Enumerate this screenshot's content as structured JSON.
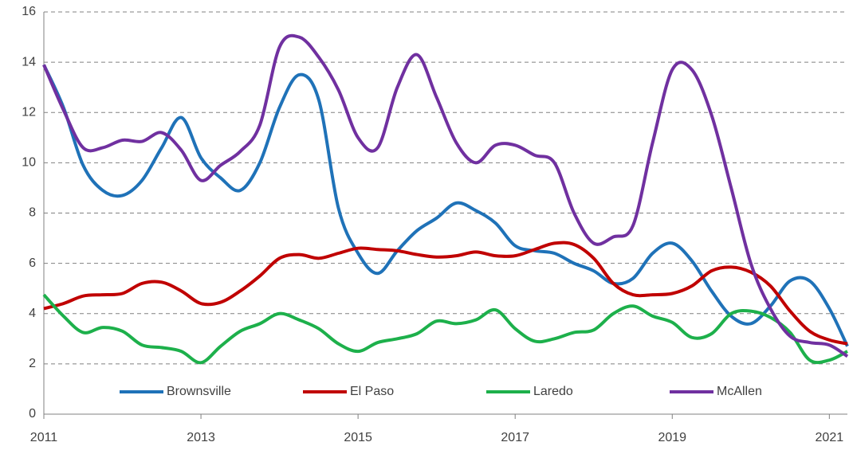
{
  "chart_data": {
    "type": "line",
    "x": [
      2011,
      2011.25,
      2011.5,
      2011.75,
      2012,
      2012.25,
      2012.5,
      2012.75,
      2013,
      2013.25,
      2013.5,
      2013.75,
      2014,
      2014.25,
      2014.5,
      2014.75,
      2015,
      2015.25,
      2015.5,
      2015.75,
      2016,
      2016.25,
      2016.5,
      2016.75,
      2017,
      2017.25,
      2017.5,
      2017.75,
      2018,
      2018.25,
      2018.5,
      2018.75,
      2019,
      2019.25,
      2019.5,
      2019.75,
      2020,
      2020.25,
      2020.5,
      2020.75,
      2021,
      2021.23
    ],
    "series": [
      {
        "name": "Brownsville",
        "color": "#1f72b8",
        "values": [
          13.9,
          12.2,
          9.9,
          8.9,
          8.7,
          9.3,
          10.6,
          11.8,
          10.2,
          9.4,
          8.9,
          10.0,
          12.2,
          13.5,
          12.5,
          8.2,
          6.4,
          5.6,
          6.5,
          7.3,
          7.8,
          8.4,
          8.1,
          7.6,
          6.7,
          6.5,
          6.4,
          6.0,
          5.7,
          5.2,
          5.4,
          6.4,
          6.8,
          6.1,
          4.9,
          3.9,
          3.6,
          4.3,
          5.3,
          5.3,
          4.2,
          2.7
        ]
      },
      {
        "name": "El Paso",
        "color": "#c00000",
        "values": [
          4.2,
          4.4,
          4.7,
          4.75,
          4.8,
          5.2,
          5.25,
          4.9,
          4.4,
          4.45,
          4.9,
          5.5,
          6.2,
          6.35,
          6.2,
          6.4,
          6.6,
          6.55,
          6.5,
          6.35,
          6.25,
          6.3,
          6.45,
          6.3,
          6.3,
          6.55,
          6.8,
          6.75,
          6.2,
          5.2,
          4.75,
          4.75,
          4.8,
          5.1,
          5.7,
          5.85,
          5.65,
          5.1,
          4.1,
          3.3,
          2.95,
          2.8
        ]
      },
      {
        "name": "Laredo",
        "color": "#1db04b",
        "values": [
          4.75,
          3.9,
          3.25,
          3.45,
          3.3,
          2.75,
          2.65,
          2.5,
          2.05,
          2.7,
          3.3,
          3.6,
          4.0,
          3.75,
          3.4,
          2.8,
          2.5,
          2.85,
          3.0,
          3.2,
          3.7,
          3.6,
          3.75,
          4.15,
          3.4,
          2.9,
          3.0,
          3.25,
          3.35,
          4.0,
          4.3,
          3.9,
          3.65,
          3.05,
          3.2,
          4.0,
          4.1,
          3.85,
          3.25,
          2.15,
          2.15,
          2.5
        ]
      },
      {
        "name": "McAllen",
        "color": "#7030a0",
        "values": [
          13.9,
          12.1,
          10.6,
          10.6,
          10.9,
          10.85,
          11.2,
          10.5,
          9.3,
          9.9,
          10.45,
          11.5,
          14.6,
          15.0,
          14.2,
          12.9,
          11.0,
          10.6,
          13.0,
          14.3,
          12.6,
          10.8,
          10.0,
          10.7,
          10.7,
          10.3,
          10.0,
          8.0,
          6.8,
          7.05,
          7.5,
          10.8,
          13.7,
          13.7,
          11.9,
          9.0,
          6.0,
          4.2,
          3.1,
          2.85,
          2.75,
          2.3
        ]
      }
    ],
    "xlim": [
      2011,
      2021.23
    ],
    "xticks": [
      2011,
      2013,
      2015,
      2017,
      2019,
      2021
    ],
    "ylim": [
      0,
      16
    ],
    "yticks": [
      0,
      2,
      4,
      6,
      8,
      10,
      12,
      14,
      16
    ],
    "grid": true,
    "legend": "bottom"
  }
}
